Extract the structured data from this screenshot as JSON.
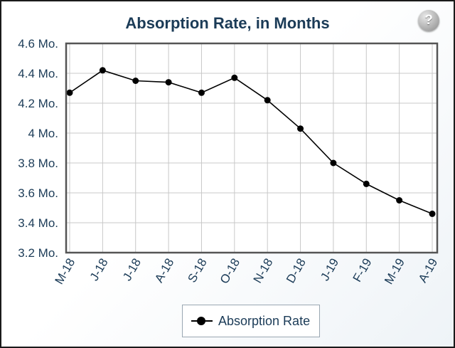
{
  "chart_data": {
    "type": "line",
    "title": "Absorption Rate, in Months",
    "categories": [
      "M-18",
      "J-18",
      "J-18",
      "A-18",
      "S-18",
      "O-18",
      "N-18",
      "D-18",
      "J-19",
      "F-19",
      "M-19",
      "A-19"
    ],
    "series": [
      {
        "name": "Absorption Rate",
        "values": [
          4.27,
          4.42,
          4.35,
          4.34,
          4.27,
          4.37,
          4.22,
          4.03,
          3.8,
          3.66,
          3.55,
          3.46
        ]
      }
    ],
    "ylim": [
      3.2,
      4.6
    ],
    "yticks": [
      4.6,
      4.4,
      4.2,
      4.0,
      3.8,
      3.6,
      3.4,
      3.2
    ],
    "ytick_labels": [
      "4.6 Mo.",
      "4.4 Mo.",
      "4.2 Mo.",
      "4 Mo.",
      "3.8 Mo.",
      "3.6 Mo.",
      "3.4 Mo.",
      "3.2 Mo."
    ],
    "grid": true,
    "legend": "bottom-center",
    "colors": {
      "line": "#000000",
      "title": "#1b3b57",
      "axis_text": "#1b3b57",
      "grid": "#c8c8c8",
      "plot_border": "#555555"
    }
  },
  "help_button": {
    "icon": "question-icon",
    "label": "?"
  }
}
